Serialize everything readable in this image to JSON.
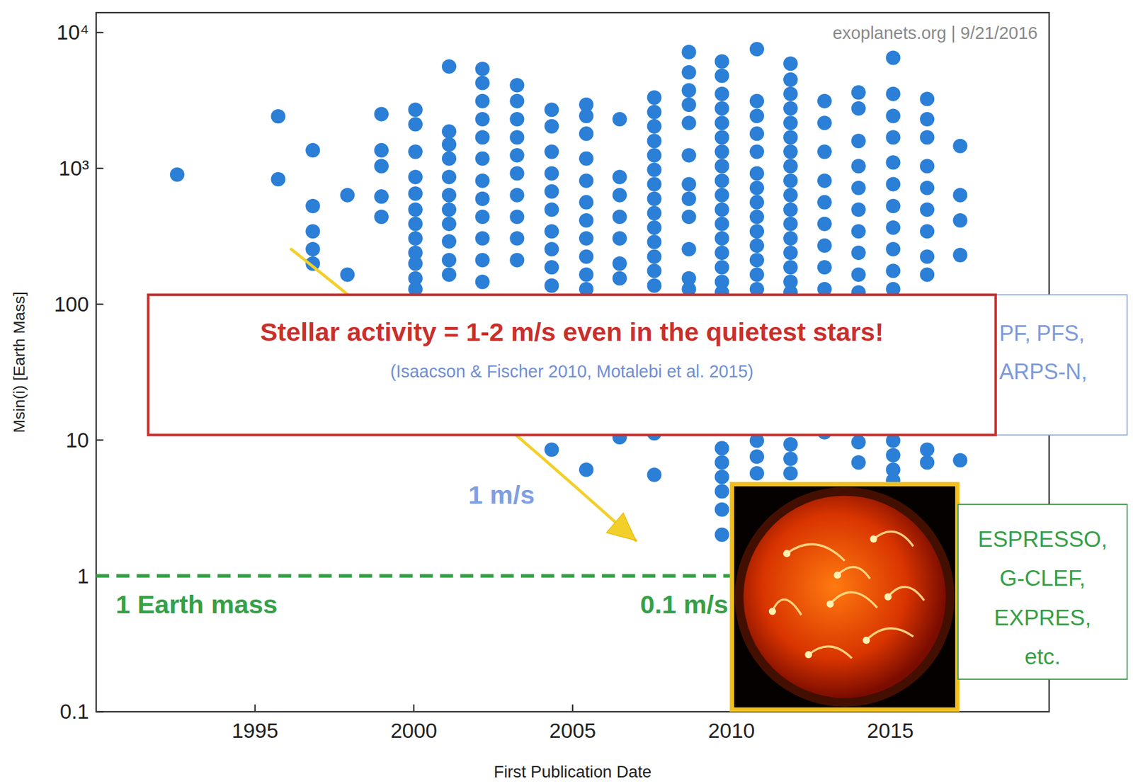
{
  "chart_data": {
    "type": "scatter",
    "x_label": "First Publication Date",
    "y_label": "Msin(i) [Earth Mass]",
    "log": "y",
    "grid": false,
    "marker": "circle",
    "color": "#2b7fd6",
    "xlim": [
      1990,
      2020
    ],
    "xticks": [
      1995,
      2000,
      2005,
      2010,
      2015
    ],
    "ylim": [
      0.1,
      14000
    ],
    "yticks": [
      {
        "value": 0.1,
        "label": "0.1"
      },
      1,
      10,
      100,
      {
        "value": 1000,
        "label": "10³"
      },
      {
        "value": 10000,
        "label": "10⁴"
      }
    ],
    "x": [
      1992.55,
      1995.73,
      1995.73,
      1996.82,
      1996.82,
      1996.82,
      1996.82,
      1996.82,
      1997.91,
      1997.91,
      1998.98,
      1998.98,
      1998.98,
      1998.98,
      1998.98,
      2000.05,
      2000.05,
      2000.05,
      2000.05,
      2000.05,
      2000.05,
      2000.05,
      2000.05,
      2000.05,
      2000.05,
      2000.05,
      2000.05,
      2001.11,
      2001.11,
      2001.11,
      2001.11,
      2001.11,
      2001.11,
      2001.11,
      2001.11,
      2001.11,
      2001.11,
      2001.11,
      2002.16,
      2002.16,
      2002.16,
      2002.16,
      2002.16,
      2002.16,
      2002.16,
      2002.16,
      2002.16,
      2002.16,
      2002.16,
      2002.16,
      2003.25,
      2003.25,
      2003.25,
      2003.25,
      2003.25,
      2003.25,
      2003.25,
      2003.25,
      2003.25,
      2003.25,
      2004.34,
      2004.34,
      2004.34,
      2004.34,
      2004.34,
      2004.34,
      2004.34,
      2004.34,
      2004.34,
      2004.34,
      2004.34,
      2005.43,
      2005.43,
      2005.43,
      2005.43,
      2005.43,
      2005.43,
      2005.43,
      2005.43,
      2005.43,
      2005.43,
      2005.43,
      2005.43,
      2006.48,
      2006.48,
      2006.48,
      2006.48,
      2006.48,
      2006.48,
      2006.48,
      2006.48,
      2007.57,
      2007.57,
      2007.57,
      2007.57,
      2007.57,
      2007.57,
      2007.57,
      2007.57,
      2007.57,
      2007.57,
      2007.57,
      2007.57,
      2007.57,
      2007.57,
      2007.57,
      2007.57,
      2008.66,
      2008.66,
      2008.66,
      2008.66,
      2008.66,
      2008.66,
      2008.66,
      2008.66,
      2008.66,
      2008.66,
      2008.66,
      2008.66,
      2009.7,
      2009.7,
      2009.7,
      2009.7,
      2009.7,
      2009.7,
      2009.7,
      2009.7,
      2009.7,
      2009.7,
      2009.7,
      2009.7,
      2009.7,
      2009.7,
      2009.7,
      2009.7,
      2009.7,
      2009.7,
      2009.7,
      2009.7,
      2009.7,
      2009.7,
      2009.7,
      2010.8,
      2010.8,
      2010.8,
      2010.8,
      2010.8,
      2010.8,
      2010.8,
      2010.8,
      2010.8,
      2010.8,
      2010.8,
      2010.8,
      2010.8,
      2010.8,
      2010.8,
      2010.8,
      2010.8,
      2011.86,
      2011.86,
      2011.86,
      2011.86,
      2011.86,
      2011.86,
      2011.86,
      2011.86,
      2011.86,
      2011.86,
      2011.86,
      2011.86,
      2011.86,
      2011.86,
      2011.86,
      2011.86,
      2011.86,
      2011.86,
      2011.86,
      2011.86,
      2012.93,
      2012.93,
      2012.93,
      2012.93,
      2012.93,
      2012.93,
      2012.93,
      2012.93,
      2012.93,
      2012.93,
      2014,
      2014,
      2014,
      2014,
      2014,
      2014,
      2014,
      2014,
      2014,
      2014,
      2014,
      2014,
      2015.09,
      2015.09,
      2015.09,
      2015.09,
      2015.09,
      2015.09,
      2015.09,
      2015.09,
      2015.09,
      2015.09,
      2015.09,
      2015.09,
      2015.09,
      2015.09,
      2015.09,
      2016.16,
      2016.16,
      2016.16,
      2016.16,
      2016.16,
      2016.16,
      2016.16,
      2016.16,
      2016.16,
      2016.16,
      2016.16,
      2017.2,
      2017.2,
      2017.2,
      2017.2,
      2017.2
    ],
    "values": [
      900,
      2415,
      832,
      1358,
      528,
      344,
      254,
      199,
      635,
      165,
      2506,
      1358,
      1038,
      620,
      440,
      2700,
      2110,
      1325,
      863,
      652,
      497,
      390,
      305,
      239,
      199,
      155,
      129,
      5620,
      1868,
      1500,
      1180,
      863,
      635,
      497,
      390,
      290,
      211,
      165,
      5400,
      4250,
      3125,
      2300,
      1690,
      1180,
      810,
      597,
      440,
      305,
      211,
      146,
      4090,
      3125,
      2300,
      1690,
      1247,
      918,
      635,
      440,
      305,
      211,
      2700,
      2040,
      1325,
      918,
      676,
      497,
      344,
      254,
      187,
      137,
      8.5,
      2940,
      2430,
      1800,
      1180,
      810,
      563,
      414,
      305,
      224,
      165,
      129,
      6.05,
      2300,
      863,
      635,
      440,
      305,
      199,
      155,
      10.5,
      3320,
      2600,
      2040,
      1590,
      1247,
      975,
      764,
      597,
      468,
      366,
      287,
      224,
      176,
      137,
      11.2,
      5.55,
      7180,
      5090,
      3750,
      2940,
      2160,
      1247,
      764,
      597,
      440,
      254,
      155,
      129,
      6120,
      4800,
      3530,
      2760,
      2160,
      1690,
      1325,
      1038,
      810,
      635,
      497,
      390,
      305,
      239,
      187,
      146,
      122,
      8.7,
      6.84,
      5.35,
      4.19,
      3.08,
      2.01,
      7550,
      3125,
      2430,
      1800,
      1325,
      918,
      718,
      563,
      440,
      344,
      270,
      211,
      165,
      129,
      9.9,
      7.55,
      5.69,
      5900,
      4500,
      3530,
      2760,
      2160,
      1690,
      1325,
      1038,
      810,
      635,
      497,
      390,
      305,
      239,
      187,
      146,
      122,
      9.3,
      7.28,
      5.69,
      3125,
      2160,
      1325,
      810,
      563,
      390,
      270,
      187,
      129,
      11.4,
      3620,
      2760,
      1590,
      1038,
      718,
      497,
      344,
      239,
      165,
      122,
      9.64,
      6.84,
      6510,
      3530,
      2430,
      1690,
      1105,
      764,
      528,
      366,
      254,
      176,
      129,
      9.9,
      7.73,
      6.05,
      5.04,
      3240,
      2300,
      1690,
      1038,
      718,
      497,
      344,
      224,
      165,
      8.5,
      6.84,
      1460,
      635,
      414,
      230,
      7.1
    ],
    "reference_line": {
      "value": 1,
      "label": "1 Earth mass",
      "color": "#35a046",
      "line_style": "dashed"
    },
    "annotations": {
      "watermark": "exoplanets.org | 9/21/2016",
      "callout_title": "Stellar activity = 1-2 m/s even in the quietest stars!",
      "callout_source": "(Isaacson & Fischer 2010, Motalebi et al. 2015)",
      "current_instruments": [
        "PF, PFS,",
        "ARPS-N,"
      ],
      "precision_current": "1 m/s",
      "precision_future": "0.1 m/s",
      "future_instruments": [
        "ESPRESSO,",
        "G-CLEF,",
        "EXPRES,",
        "etc."
      ]
    }
  }
}
